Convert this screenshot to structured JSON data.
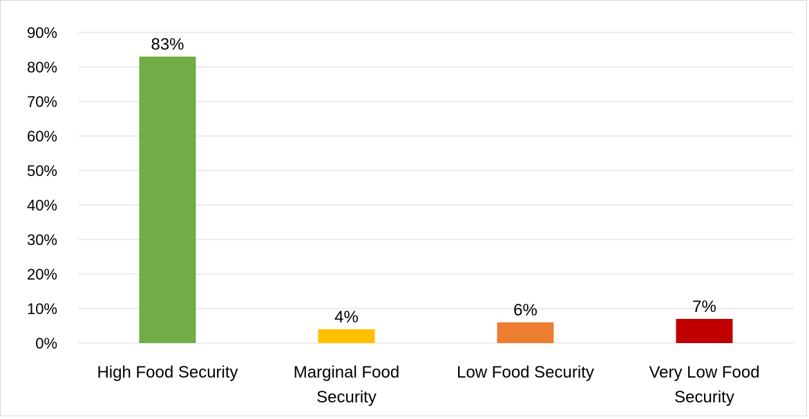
{
  "chart_data": {
    "type": "bar",
    "categories": [
      [
        "High Food Security"
      ],
      [
        "Marginal Food",
        "Security"
      ],
      [
        "Low Food Security"
      ],
      [
        "Very Low Food",
        "Security"
      ]
    ],
    "values": [
      83,
      4,
      6,
      7
    ],
    "data_labels": [
      "83%",
      "4%",
      "6%",
      "7%"
    ],
    "colors": [
      "#70ad47",
      "#ffc000",
      "#ed7d31",
      "#c00000"
    ],
    "ylim": [
      0,
      90
    ],
    "yticks": [
      0,
      10,
      20,
      30,
      40,
      50,
      60,
      70,
      80,
      90
    ],
    "ytick_labels": [
      "0%",
      "10%",
      "20%",
      "30%",
      "40%",
      "50%",
      "60%",
      "70%",
      "80%",
      "90%"
    ],
    "grid": true,
    "gridline_color": "#d9d9d9",
    "title": "",
    "xlabel": "",
    "ylabel": "",
    "legend": "none"
  }
}
